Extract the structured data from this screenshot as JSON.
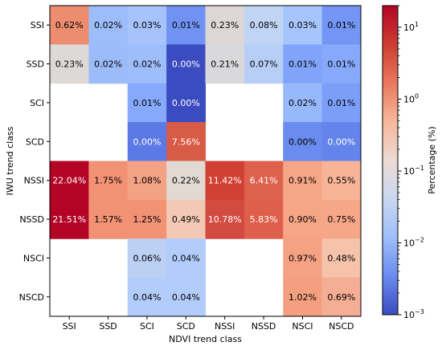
{
  "chart_data": {
    "type": "heatmap",
    "title": "",
    "xlabel": "NDVI trend class",
    "ylabel": "IWU trend class",
    "x_categories": [
      "SSI",
      "SSD",
      "SCI",
      "SCD",
      "NSSI",
      "NSSD",
      "NSCI",
      "NSCD"
    ],
    "y_categories": [
      "SSI",
      "SSD",
      "SCI",
      "SCD",
      "NSSI",
      "NSSD",
      "NSCI",
      "NSCD"
    ],
    "values": [
      [
        0.62,
        0.02,
        0.03,
        0.01,
        0.23,
        0.08,
        0.03,
        0.01
      ],
      [
        0.23,
        0.02,
        0.02,
        0.0,
        0.21,
        0.07,
        0.01,
        0.01
      ],
      [
        null,
        null,
        0.01,
        0.0,
        null,
        null,
        0.02,
        0.01
      ],
      [
        null,
        null,
        0.0,
        7.56,
        null,
        null,
        0.0,
        0.0
      ],
      [
        22.04,
        1.75,
        1.08,
        0.22,
        11.42,
        6.41,
        0.91,
        0.55
      ],
      [
        21.51,
        1.57,
        1.25,
        0.49,
        10.78,
        5.83,
        0.9,
        0.75
      ],
      [
        null,
        null,
        0.06,
        0.04,
        null,
        null,
        0.97,
        0.48
      ],
      [
        null,
        null,
        0.04,
        0.04,
        null,
        null,
        1.02,
        0.69
      ]
    ],
    "display_values": [
      [
        "0.62%",
        "0.02%",
        "0.03%",
        "0.01%",
        "0.23%",
        "0.08%",
        "0.03%",
        "0.01%"
      ],
      [
        "0.23%",
        "0.02%",
        "0.02%",
        "0.00%",
        "0.21%",
        "0.07%",
        "0.01%",
        "0.01%"
      ],
      [
        "",
        "",
        "0.01%",
        "0.00%",
        "",
        "",
        "0.02%",
        "0.01%"
      ],
      [
        "",
        "",
        "0.00%",
        "7.56%",
        "",
        "",
        "0.00%",
        "0.00%"
      ],
      [
        "22.04%",
        "1.75%",
        "1.08%",
        "0.22%",
        "11.42%",
        "6.41%",
        "0.91%",
        "0.55%"
      ],
      [
        "21.51%",
        "1.57%",
        "1.25%",
        "0.49%",
        "10.78%",
        "5.83%",
        "0.90%",
        "0.75%"
      ],
      [
        "",
        "",
        "0.06%",
        "0.04%",
        "",
        "",
        "0.97%",
        "0.48%"
      ],
      [
        "",
        "",
        "0.04%",
        "0.04%",
        "",
        "",
        "1.02%",
        "0.69%"
      ]
    ],
    "cell_colors": [
      [
        "#ed8c6f",
        "#9cbdfa",
        "#a6c4fb",
        "#7093f3",
        "#dcd6d4",
        "#c0d4f4",
        "#a7c5fd",
        "#7396f5"
      ],
      [
        "#ddd9d6",
        "#9bbcf9",
        "#9ebefa",
        "#3b4cc0",
        "#d9d8da",
        "#b7cef7",
        "#81a4fb",
        "#86a9fc"
      ],
      [
        null,
        null,
        "#86a9fc",
        "#3b4cc0",
        null,
        null,
        "#97b8fa",
        "#7b9ff9"
      ],
      [
        null,
        null,
        "#5b7ae5",
        "#d85b46",
        null,
        null,
        "#6a8bef",
        "#6384eb"
      ],
      [
        "#b40426",
        "#f29274",
        "#f4a284",
        "#e2d9d3",
        "#d04133",
        "#de614d",
        "#f6a586",
        "#f7b497"
      ],
      [
        "#b40426",
        "#f29274",
        "#f29274",
        "#f2c9b4",
        "#d24b40",
        "#de604c",
        "#f6a586",
        "#f5a788"
      ],
      [
        null,
        null,
        "#bbd0f3",
        "#b3cdfb",
        null,
        null,
        "#f5a283",
        "#f5c2aa"
      ],
      [
        null,
        null,
        "#b3cdfb",
        "#b3cdfb",
        null,
        null,
        "#f4a080",
        "#f5ae94"
      ]
    ],
    "colorbar": {
      "label": "Percentage (%)",
      "scale": "log",
      "range": [
        0.001,
        20
      ],
      "ticks": [
        "10^1",
        "10^0",
        "10^-1",
        "10^-2",
        "10^-3"
      ],
      "colors": [
        "#3b4cc0",
        "#6a8bef",
        "#9ebefa",
        "#c9d7f0",
        "#eddbd4",
        "#f6b79a",
        "#e9785d",
        "#cc3d32",
        "#b40426"
      ]
    }
  }
}
